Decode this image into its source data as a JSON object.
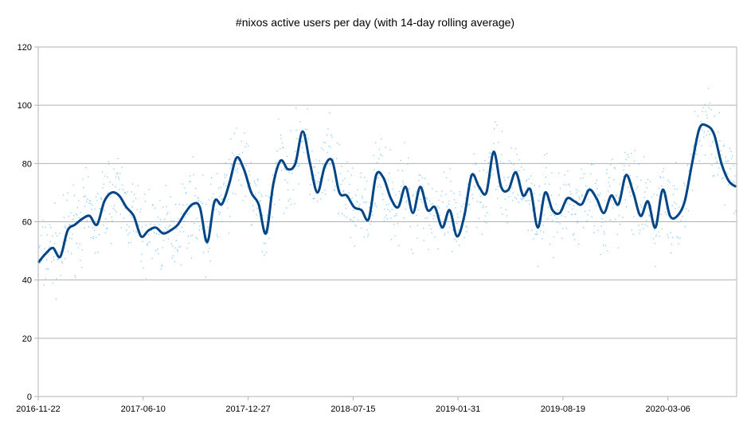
{
  "chart_data": {
    "type": "line",
    "title": "#nixos active users per day (with 14-day rolling average)",
    "xlabel": "",
    "ylabel": "",
    "ylim": [
      0,
      120
    ],
    "yticks": [
      0,
      20,
      40,
      60,
      80,
      100,
      120
    ],
    "xlim": [
      "2016-11-22",
      "2020-07-15"
    ],
    "xticks": [
      "2016-11-22",
      "2017-06-10",
      "2017-12-27",
      "2018-07-15",
      "2019-01-31",
      "2019-08-19",
      "2020-03-06"
    ],
    "grid": "horizontal",
    "legend": "none",
    "colors": {
      "average": "#004586",
      "daily": "#83caff"
    },
    "series": [
      {
        "kind": "rolling-average",
        "x": [
          "2016-11-22",
          "2016-12-06",
          "2016-12-20",
          "2017-01-03",
          "2017-01-17",
          "2017-01-31",
          "2017-02-14",
          "2017-02-28",
          "2017-03-14",
          "2017-03-28",
          "2017-04-11",
          "2017-04-25",
          "2017-05-09",
          "2017-05-23",
          "2017-06-06",
          "2017-06-20",
          "2017-07-04",
          "2017-07-18",
          "2017-08-01",
          "2017-08-15",
          "2017-08-29",
          "2017-09-12",
          "2017-09-26",
          "2017-10-10",
          "2017-10-24",
          "2017-11-07",
          "2017-11-21",
          "2017-12-05",
          "2017-12-19",
          "2018-01-02",
          "2018-01-16",
          "2018-01-30",
          "2018-02-13",
          "2018-02-27",
          "2018-03-13",
          "2018-03-27",
          "2018-04-10",
          "2018-04-24",
          "2018-05-08",
          "2018-05-22",
          "2018-06-05",
          "2018-06-19",
          "2018-07-03",
          "2018-07-17",
          "2018-07-31",
          "2018-08-14",
          "2018-08-28",
          "2018-09-11",
          "2018-09-25",
          "2018-10-09",
          "2018-10-23",
          "2018-11-06",
          "2018-11-20",
          "2018-12-04",
          "2018-12-18",
          "2019-01-01",
          "2019-01-15",
          "2019-01-29",
          "2019-02-12",
          "2019-02-26",
          "2019-03-12",
          "2019-03-26",
          "2019-04-09",
          "2019-04-23",
          "2019-05-07",
          "2019-05-21",
          "2019-06-04",
          "2019-06-18",
          "2019-07-02",
          "2019-07-16",
          "2019-07-30",
          "2019-08-13",
          "2019-08-27",
          "2019-09-10",
          "2019-09-24",
          "2019-10-08",
          "2019-10-22",
          "2019-11-05",
          "2019-11-19",
          "2019-12-03",
          "2019-12-17",
          "2019-12-31",
          "2020-01-14",
          "2020-01-28",
          "2020-02-11",
          "2020-02-25",
          "2020-03-10",
          "2020-03-24",
          "2020-04-07",
          "2020-04-21",
          "2020-05-05",
          "2020-05-19",
          "2020-06-02",
          "2020-06-16",
          "2020-06-30",
          "2020-07-14"
        ],
        "y": [
          46,
          49,
          51,
          48,
          57,
          59,
          61,
          62,
          59,
          67,
          70,
          69,
          65,
          62,
          55,
          57,
          58,
          56,
          57,
          59,
          63,
          66,
          65,
          53,
          67,
          66,
          73,
          82,
          78,
          70,
          66,
          56,
          73,
          81,
          78,
          80,
          91,
          80,
          70,
          79,
          81,
          70,
          69,
          65,
          64,
          61,
          76,
          75,
          68,
          65,
          72,
          63,
          72,
          64,
          65,
          58,
          64,
          55,
          62,
          76,
          72,
          70,
          84,
          72,
          71,
          77,
          69,
          71,
          58,
          70,
          64,
          63,
          68,
          67,
          66,
          71,
          68,
          63,
          69,
          66,
          76,
          70,
          62,
          67,
          58,
          71,
          62,
          62,
          67,
          80,
          92,
          93,
          90,
          80,
          74,
          72
        ]
      }
    ]
  }
}
